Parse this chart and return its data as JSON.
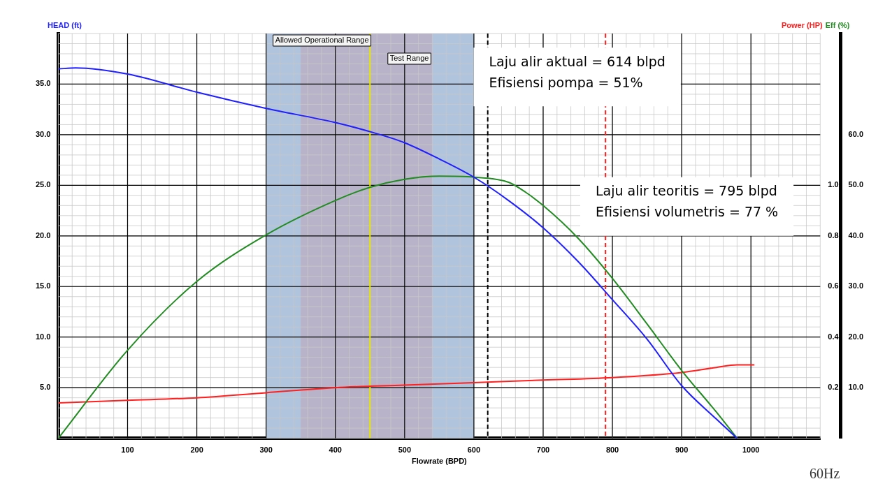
{
  "chart_data": {
    "type": "line",
    "xlabel": "Flowrate (BPD)",
    "ylabel": "HEAD (ft)",
    "y2label": "Eff (%)",
    "y3label": "Power (HP)",
    "xlim": [
      0,
      1100
    ],
    "xticks": [
      100,
      200,
      300,
      400,
      500,
      600,
      700,
      800,
      900,
      1000
    ],
    "ylim": [
      0,
      40
    ],
    "yticks": [
      {
        "value": 5,
        "label": "5.0"
      },
      {
        "value": 10,
        "label": "10.0"
      },
      {
        "value": 15,
        "label": "15.0"
      },
      {
        "value": 20,
        "label": "20.0"
      },
      {
        "value": 25,
        "label": "25.0"
      },
      {
        "value": 30,
        "label": "30.0"
      },
      {
        "value": 35,
        "label": "35.0"
      }
    ],
    "y2lim": [
      0,
      80
    ],
    "y2ticks": [
      {
        "value": 10,
        "label": "10.0"
      },
      {
        "value": 20,
        "label": "20.0"
      },
      {
        "value": 30,
        "label": "30.0"
      },
      {
        "value": 40,
        "label": "40.0"
      },
      {
        "value": 50,
        "label": "50.0"
      },
      {
        "value": 60,
        "label": "60.0"
      }
    ],
    "y3lim": [
      0,
      1.6
    ],
    "y3ticks": [
      0.2,
      0.4,
      0.6,
      0.8,
      {
        "value": 1,
        "label": "1.0"
      }
    ],
    "grid": true,
    "legend": false,
    "marker": "none",
    "line_style": "solid",
    "series": [
      {
        "color": "#2020ff",
        "x": [
          0,
          25,
          100,
          200,
          300,
          400,
          450,
          500,
          550,
          600,
          650,
          700,
          750,
          800,
          850,
          900,
          950,
          980
        ],
        "values": [
          36.5,
          36.6,
          36.0,
          34.2,
          32.6,
          31.2,
          30.3,
          29.2,
          27.6,
          25.8,
          23.5,
          20.8,
          17.5,
          13.7,
          9.8,
          5.2,
          1.9,
          0
        ]
      },
      {
        "color": "#228b22",
        "axis": "y2",
        "x": [
          0,
          100,
          200,
          300,
          400,
          450,
          500,
          550,
          600,
          650,
          675,
          700,
          750,
          800,
          850,
          900,
          950,
          980
        ],
        "values": [
          0,
          17.4,
          31,
          40.2,
          47,
          49.6,
          51.2,
          51.8,
          51.6,
          50.6,
          48.6,
          46,
          39.6,
          31.6,
          22.6,
          13.4,
          5.2,
          0
        ]
      },
      {
        "color": "#ff2020",
        "axis": "y3",
        "x": [
          0,
          100,
          200,
          300,
          400,
          500,
          600,
          700,
          800,
          900,
          950,
          980,
          1005
        ],
        "values": [
          0.14,
          0.15,
          0.16,
          0.18,
          0.2,
          0.21,
          0.22,
          0.23,
          0.24,
          0.26,
          0.28,
          0.29,
          0.29
        ]
      }
    ],
    "bands": [
      {
        "axis": "x",
        "from": 300,
        "to": 600,
        "label": "Allowed Operational Range",
        "color": "#b0c4de"
      },
      {
        "axis": "x",
        "from": 350,
        "to": 540,
        "label": "Test Range",
        "color": "#b9b3c9"
      }
    ],
    "ref_lines": [
      {
        "axis": "x",
        "value": 450,
        "color": "#e8e800",
        "line_style": "solid"
      },
      {
        "axis": "x",
        "value": 620,
        "color": "#000000",
        "line_style": "dashed"
      },
      {
        "axis": "x",
        "value": 790,
        "color": "#ff2020",
        "line_style": "dashed"
      }
    ],
    "annotations": [
      "Laju alir aktual = 614 blpd\nEfisiensi pompa = 51%",
      "Laju alir teoritis = 795 blpd\nEfisiensi volumetris = 77 %",
      "60Hz"
    ]
  }
}
